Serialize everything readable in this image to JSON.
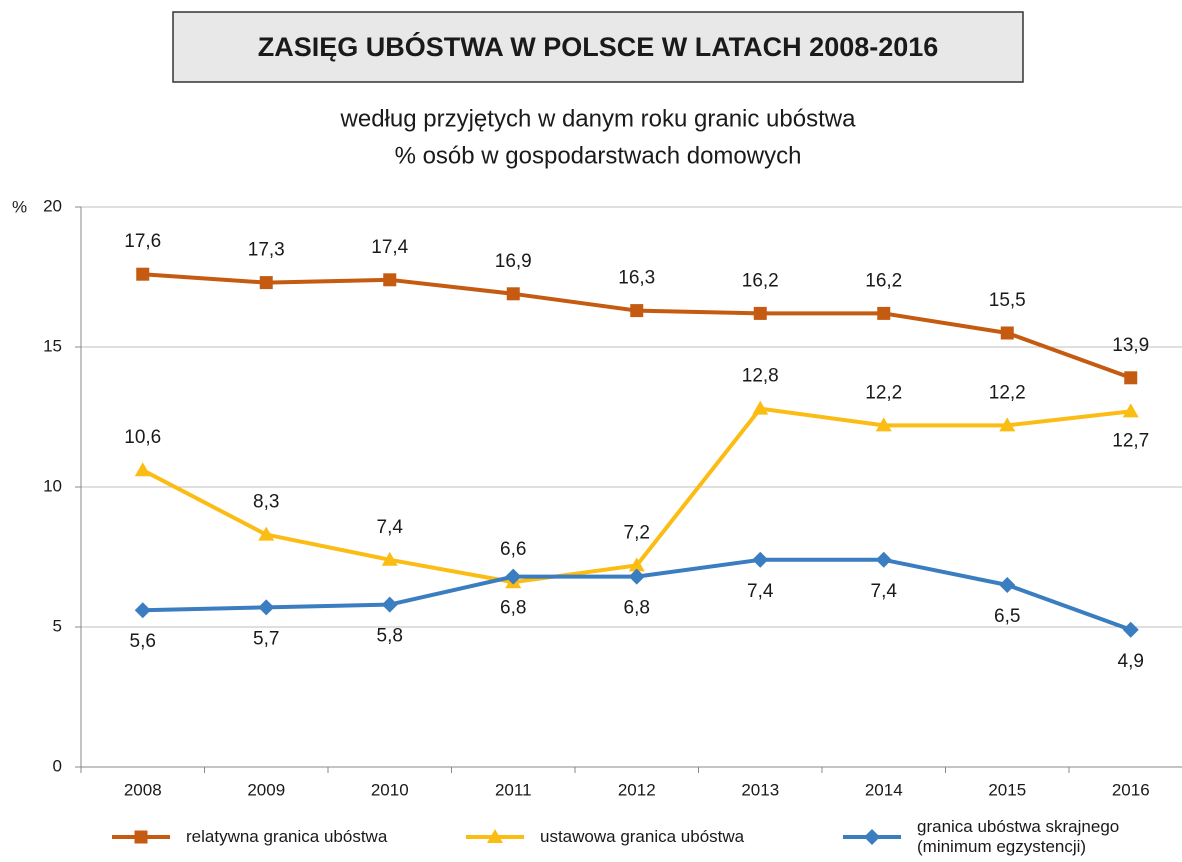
{
  "chart_data": {
    "type": "line",
    "title": "ZASIĘG UBÓSTWA W POLSCE W LATACH 2008-2016",
    "subtitle": [
      "według przyjętych w danym roku granic ubóstwa",
      "% osób w gospodarstwach domowych"
    ],
    "y_label": "%",
    "categories": [
      "2008",
      "2009",
      "2010",
      "2011",
      "2012",
      "2013",
      "2014",
      "2015",
      "2016"
    ],
    "ylim": [
      0,
      20
    ],
    "yticks": [
      0,
      5,
      10,
      15,
      20
    ],
    "grid": true,
    "series": [
      {
        "name": "relatywna granica ubóstwa",
        "color": "#c55a11",
        "marker": "square",
        "values": [
          17.6,
          17.3,
          17.4,
          16.9,
          16.3,
          16.2,
          16.2,
          15.5,
          13.9
        ],
        "value_labels": [
          "17,6",
          "17,3",
          "17,4",
          "16,9",
          "16,3",
          "16,2",
          "16,2",
          "15,5",
          "13,9"
        ]
      },
      {
        "name": "ustawowa granica ubóstwa",
        "color": "#fbbc14",
        "marker": "triangle",
        "values": [
          10.6,
          8.3,
          7.4,
          6.6,
          7.2,
          12.8,
          12.2,
          12.2,
          12.7
        ],
        "value_labels": [
          "10,6",
          "8,3",
          "7,4",
          "6,6",
          "7,2",
          "12,8",
          "12,2",
          "12,2",
          "12,7"
        ]
      },
      {
        "name": "granica ubóstwa skrajnego (minimum egzystencji)",
        "color": "#3a7dc0",
        "marker": "diamond",
        "values": [
          5.6,
          5.7,
          5.8,
          6.8,
          6.8,
          7.4,
          7.4,
          6.5,
          4.9
        ],
        "value_labels": [
          "5,6",
          "5,7",
          "5,8",
          "6,8",
          "6,8",
          "7,4",
          "7,4",
          "6,5",
          "4,9"
        ]
      }
    ]
  }
}
